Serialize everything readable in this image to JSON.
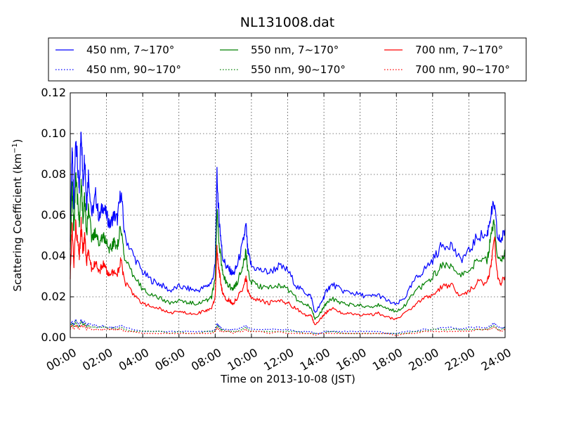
{
  "chart_data": {
    "type": "line",
    "title": "NL131008.dat",
    "xlabel": "Time on 2013-10-08 (JST)",
    "ylabel_main": "Scattering Coefficient (km",
    "ylabel_sup": "−1",
    "ylabel_end": ")",
    "xlim": [
      0,
      24
    ],
    "ylim": [
      0,
      0.12
    ],
    "x_ticks": [
      0,
      2,
      4,
      6,
      8,
      10,
      12,
      14,
      16,
      18,
      20,
      22,
      24
    ],
    "x_tick_labels": [
      "00:00",
      "02:00",
      "04:00",
      "06:00",
      "08:00",
      "10:00",
      "12:00",
      "14:00",
      "16:00",
      "18:00",
      "20:00",
      "22:00",
      "24:00"
    ],
    "y_ticks": [
      0,
      0.02,
      0.04,
      0.06,
      0.08,
      0.1,
      0.12
    ],
    "y_tick_labels": [
      "0.00",
      "0.02",
      "0.04",
      "0.06",
      "0.08",
      "0.10",
      "0.12"
    ],
    "grid": true,
    "legend_position": "top, outside plot, 3 columns",
    "x": [
      0.0,
      0.1,
      0.2,
      0.3,
      0.4,
      0.5,
      0.6,
      0.7,
      0.8,
      0.9,
      1.0,
      1.2,
      1.4,
      1.6,
      1.8,
      2.0,
      2.2,
      2.4,
      2.6,
      2.8,
      3.0,
      3.5,
      4.0,
      4.5,
      5.0,
      5.5,
      6.0,
      6.5,
      7.0,
      7.5,
      7.8,
      8.0,
      8.1,
      8.2,
      8.3,
      8.4,
      8.6,
      8.8,
      9.0,
      9.2,
      9.5,
      9.7,
      9.8,
      10.0,
      10.5,
      11.0,
      11.5,
      12.0,
      12.5,
      13.0,
      13.3,
      13.5,
      13.8,
      14.0,
      14.2,
      14.5,
      15.0,
      15.5,
      16.0,
      16.5,
      17.0,
      17.5,
      18.0,
      18.5,
      19.0,
      19.5,
      20.0,
      20.5,
      21.0,
      21.5,
      22.0,
      22.5,
      23.0,
      23.2,
      23.4,
      23.6,
      23.8,
      24.0
    ],
    "series": [
      {
        "name": "450 nm, 7∼170°",
        "color": "#0000ff",
        "style": "solid",
        "values": [
          0.05,
          0.095,
          0.06,
          0.1,
          0.085,
          0.07,
          0.105,
          0.075,
          0.09,
          0.065,
          0.08,
          0.06,
          0.07,
          0.058,
          0.065,
          0.06,
          0.055,
          0.06,
          0.058,
          0.072,
          0.05,
          0.04,
          0.032,
          0.028,
          0.026,
          0.023,
          0.025,
          0.024,
          0.023,
          0.025,
          0.027,
          0.035,
          0.08,
          0.06,
          0.05,
          0.04,
          0.035,
          0.033,
          0.031,
          0.035,
          0.045,
          0.055,
          0.042,
          0.035,
          0.033,
          0.032,
          0.035,
          0.033,
          0.025,
          0.022,
          0.02,
          0.012,
          0.016,
          0.02,
          0.024,
          0.026,
          0.023,
          0.022,
          0.021,
          0.02,
          0.021,
          0.018,
          0.016,
          0.02,
          0.028,
          0.033,
          0.038,
          0.045,
          0.046,
          0.038,
          0.042,
          0.05,
          0.05,
          0.06,
          0.065,
          0.048,
          0.048,
          0.053
        ]
      },
      {
        "name": "550 nm, 7∼170°",
        "color": "#008000",
        "style": "solid",
        "values": [
          0.043,
          0.075,
          0.05,
          0.078,
          0.068,
          0.056,
          0.078,
          0.058,
          0.07,
          0.05,
          0.062,
          0.048,
          0.052,
          0.046,
          0.05,
          0.047,
          0.043,
          0.047,
          0.045,
          0.055,
          0.038,
          0.03,
          0.024,
          0.021,
          0.019,
          0.017,
          0.018,
          0.017,
          0.017,
          0.018,
          0.02,
          0.028,
          0.062,
          0.048,
          0.04,
          0.032,
          0.027,
          0.025,
          0.024,
          0.027,
          0.034,
          0.042,
          0.032,
          0.027,
          0.025,
          0.024,
          0.026,
          0.024,
          0.019,
          0.016,
          0.015,
          0.009,
          0.012,
          0.015,
          0.018,
          0.019,
          0.017,
          0.016,
          0.016,
          0.015,
          0.016,
          0.014,
          0.013,
          0.016,
          0.022,
          0.026,
          0.03,
          0.035,
          0.036,
          0.03,
          0.033,
          0.038,
          0.038,
          0.048,
          0.058,
          0.038,
          0.037,
          0.042
        ]
      },
      {
        "name": "700 nm, 7∼170°",
        "color": "#ff0000",
        "style": "solid",
        "values": [
          0.03,
          0.055,
          0.035,
          0.055,
          0.048,
          0.04,
          0.056,
          0.042,
          0.05,
          0.035,
          0.044,
          0.033,
          0.037,
          0.032,
          0.036,
          0.033,
          0.03,
          0.033,
          0.031,
          0.038,
          0.027,
          0.021,
          0.017,
          0.015,
          0.014,
          0.012,
          0.013,
          0.012,
          0.012,
          0.013,
          0.014,
          0.02,
          0.044,
          0.034,
          0.028,
          0.022,
          0.019,
          0.018,
          0.017,
          0.019,
          0.024,
          0.03,
          0.023,
          0.019,
          0.018,
          0.017,
          0.018,
          0.017,
          0.014,
          0.011,
          0.011,
          0.006,
          0.009,
          0.011,
          0.013,
          0.014,
          0.012,
          0.012,
          0.011,
          0.011,
          0.012,
          0.01,
          0.009,
          0.012,
          0.016,
          0.019,
          0.021,
          0.025,
          0.026,
          0.021,
          0.023,
          0.027,
          0.027,
          0.034,
          0.05,
          0.028,
          0.027,
          0.03
        ]
      },
      {
        "name": "450 nm, 90∼170°",
        "color": "#0000ff",
        "style": "dotted",
        "values": [
          0.006,
          0.008,
          0.006,
          0.009,
          0.007,
          0.006,
          0.009,
          0.007,
          0.008,
          0.006,
          0.007,
          0.006,
          0.006,
          0.005,
          0.006,
          0.005,
          0.005,
          0.005,
          0.005,
          0.006,
          0.005,
          0.004,
          0.003,
          0.003,
          0.003,
          0.003,
          0.003,
          0.003,
          0.003,
          0.003,
          0.003,
          0.004,
          0.007,
          0.006,
          0.005,
          0.004,
          0.004,
          0.004,
          0.004,
          0.004,
          0.005,
          0.006,
          0.005,
          0.004,
          0.004,
          0.004,
          0.004,
          0.004,
          0.003,
          0.003,
          0.003,
          0.002,
          0.002,
          0.003,
          0.003,
          0.003,
          0.003,
          0.003,
          0.003,
          0.003,
          0.003,
          0.002,
          0.002,
          0.003,
          0.003,
          0.004,
          0.004,
          0.005,
          0.005,
          0.004,
          0.005,
          0.005,
          0.005,
          0.006,
          0.007,
          0.005,
          0.005,
          0.005
        ]
      },
      {
        "name": "550 nm, 90∼170°",
        "color": "#008000",
        "style": "dotted",
        "values": [
          0.005,
          0.007,
          0.005,
          0.008,
          0.006,
          0.005,
          0.008,
          0.006,
          0.007,
          0.005,
          0.006,
          0.005,
          0.005,
          0.005,
          0.005,
          0.005,
          0.004,
          0.005,
          0.004,
          0.005,
          0.004,
          0.003,
          0.003,
          0.003,
          0.003,
          0.002,
          0.003,
          0.002,
          0.002,
          0.003,
          0.003,
          0.003,
          0.006,
          0.005,
          0.004,
          0.004,
          0.003,
          0.003,
          0.003,
          0.003,
          0.004,
          0.005,
          0.004,
          0.003,
          0.003,
          0.003,
          0.003,
          0.003,
          0.003,
          0.002,
          0.002,
          0.002,
          0.002,
          0.002,
          0.003,
          0.003,
          0.002,
          0.002,
          0.002,
          0.002,
          0.002,
          0.002,
          0.002,
          0.002,
          0.003,
          0.003,
          0.004,
          0.004,
          0.004,
          0.004,
          0.004,
          0.004,
          0.004,
          0.005,
          0.006,
          0.004,
          0.004,
          0.005
        ]
      },
      {
        "name": "700 nm, 90∼170°",
        "color": "#ff0000",
        "style": "dotted",
        "values": [
          0.004,
          0.006,
          0.004,
          0.006,
          0.005,
          0.004,
          0.006,
          0.005,
          0.006,
          0.004,
          0.005,
          0.004,
          0.004,
          0.004,
          0.004,
          0.004,
          0.004,
          0.004,
          0.004,
          0.004,
          0.003,
          0.003,
          0.002,
          0.002,
          0.002,
          0.002,
          0.002,
          0.002,
          0.002,
          0.002,
          0.002,
          0.003,
          0.005,
          0.004,
          0.003,
          0.003,
          0.003,
          0.003,
          0.002,
          0.003,
          0.003,
          0.004,
          0.003,
          0.003,
          0.003,
          0.002,
          0.003,
          0.002,
          0.002,
          0.002,
          0.002,
          0.001,
          0.002,
          0.002,
          0.002,
          0.002,
          0.002,
          0.002,
          0.002,
          0.002,
          0.002,
          0.002,
          0.001,
          0.002,
          0.002,
          0.003,
          0.003,
          0.003,
          0.003,
          0.003,
          0.003,
          0.004,
          0.004,
          0.004,
          0.005,
          0.004,
          0.003,
          0.004
        ]
      }
    ]
  }
}
